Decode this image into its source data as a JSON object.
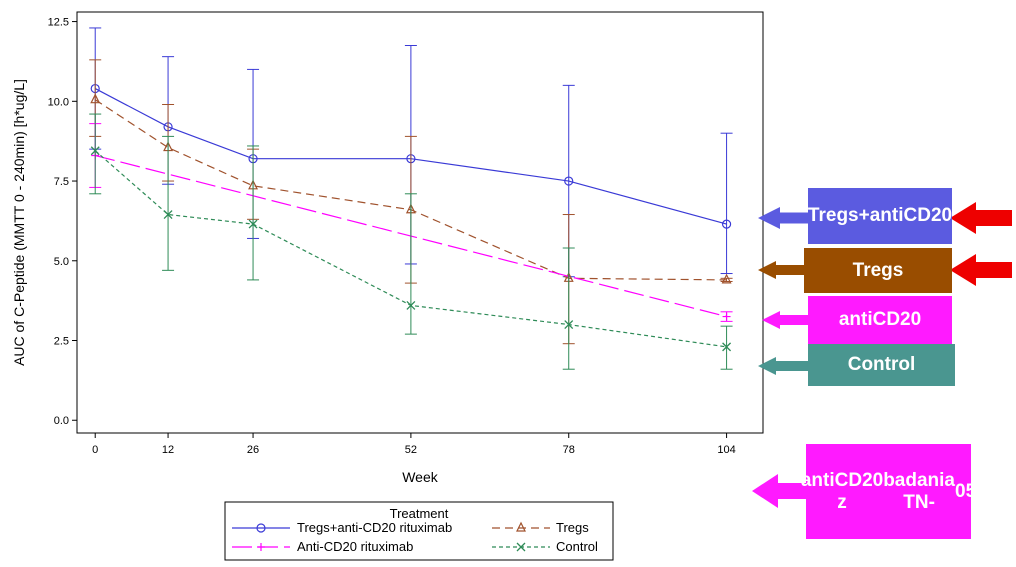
{
  "chart_data": {
    "type": "line",
    "xlabel": "Week",
    "ylabel": "AUC of C-Peptide (MMTT 0 - 240min) [h*ug/L]",
    "xticks": [
      0,
      12,
      26,
      52,
      78,
      104
    ],
    "yticks": [
      "0.0",
      "2.5",
      "5.0",
      "7.5",
      "10.0",
      "12.5"
    ],
    "xlim": [
      -3,
      110
    ],
    "ylim": [
      -0.4,
      12.8
    ],
    "grid": false,
    "legend": {
      "title": "Treatment",
      "position": "bottom",
      "entries": [
        "Tregs+anti-CD20 rituximab",
        "Tregs",
        "Anti-CD20 rituximab",
        "Control"
      ]
    },
    "series": [
      {
        "name": "Tregs+anti-CD20 rituximab",
        "color": "#3a3ad6",
        "marker": "circle",
        "dash": "none",
        "x": [
          0,
          12,
          26,
          52,
          78,
          104
        ],
        "y": [
          10.4,
          9.2,
          8.2,
          8.2,
          7.5,
          6.15
        ],
        "upper": [
          12.3,
          11.4,
          11.0,
          11.75,
          10.5,
          9.0
        ],
        "lower": [
          8.5,
          7.4,
          5.7,
          4.9,
          4.5,
          4.6
        ]
      },
      {
        "name": "Tregs",
        "color": "#a0522d",
        "marker": "triangle",
        "dash": "8,5",
        "x": [
          0,
          12,
          26,
          52,
          78,
          104
        ],
        "y": [
          10.05,
          8.55,
          7.35,
          6.6,
          4.45,
          4.4
        ],
        "upper": [
          11.3,
          9.9,
          8.5,
          8.9,
          6.45,
          4.45
        ],
        "lower": [
          8.9,
          7.5,
          6.3,
          4.3,
          2.4,
          4.35
        ]
      },
      {
        "name": "Anti-CD20 rituximab",
        "color": "#ff00ff",
        "marker": "plus",
        "dash": "20,6",
        "x": [
          0,
          104
        ],
        "y": [
          8.3,
          3.25
        ],
        "upper": [
          9.3,
          3.4
        ],
        "lower": [
          7.3,
          3.1
        ]
      },
      {
        "name": "Control",
        "color": "#2e8b57",
        "marker": "x",
        "dash": "4,3",
        "x": [
          0,
          12,
          26,
          52,
          78,
          104
        ],
        "y": [
          8.45,
          6.45,
          6.15,
          3.6,
          3.0,
          2.3
        ],
        "upper": [
          9.6,
          8.9,
          8.6,
          7.1,
          5.4,
          2.95
        ],
        "lower": [
          7.1,
          4.7,
          4.4,
          2.7,
          1.6,
          1.6
        ]
      }
    ]
  },
  "annotations": {
    "tregs_anticd20": {
      "lines": [
        "Tregs+",
        "antiCD20"
      ],
      "bg": "#5b5be0"
    },
    "tregs": {
      "lines": [
        "Tregs"
      ],
      "bg": "#994d00"
    },
    "anticd20": {
      "lines": [
        "antiCD20"
      ],
      "bg": "#ff1aff"
    },
    "control": {
      "lines": [
        "Control"
      ],
      "bg": "#4a9690"
    },
    "tn05": {
      "lines": [
        "antiCD20 z",
        "badania TN-",
        "05"
      ],
      "bg": "#ff1aff"
    },
    "arrow_colors": {
      "blue": "#5b5be0",
      "brown": "#994d00",
      "magenta": "#ff1aff",
      "teal": "#4a9690",
      "red": "#ee0000"
    }
  }
}
